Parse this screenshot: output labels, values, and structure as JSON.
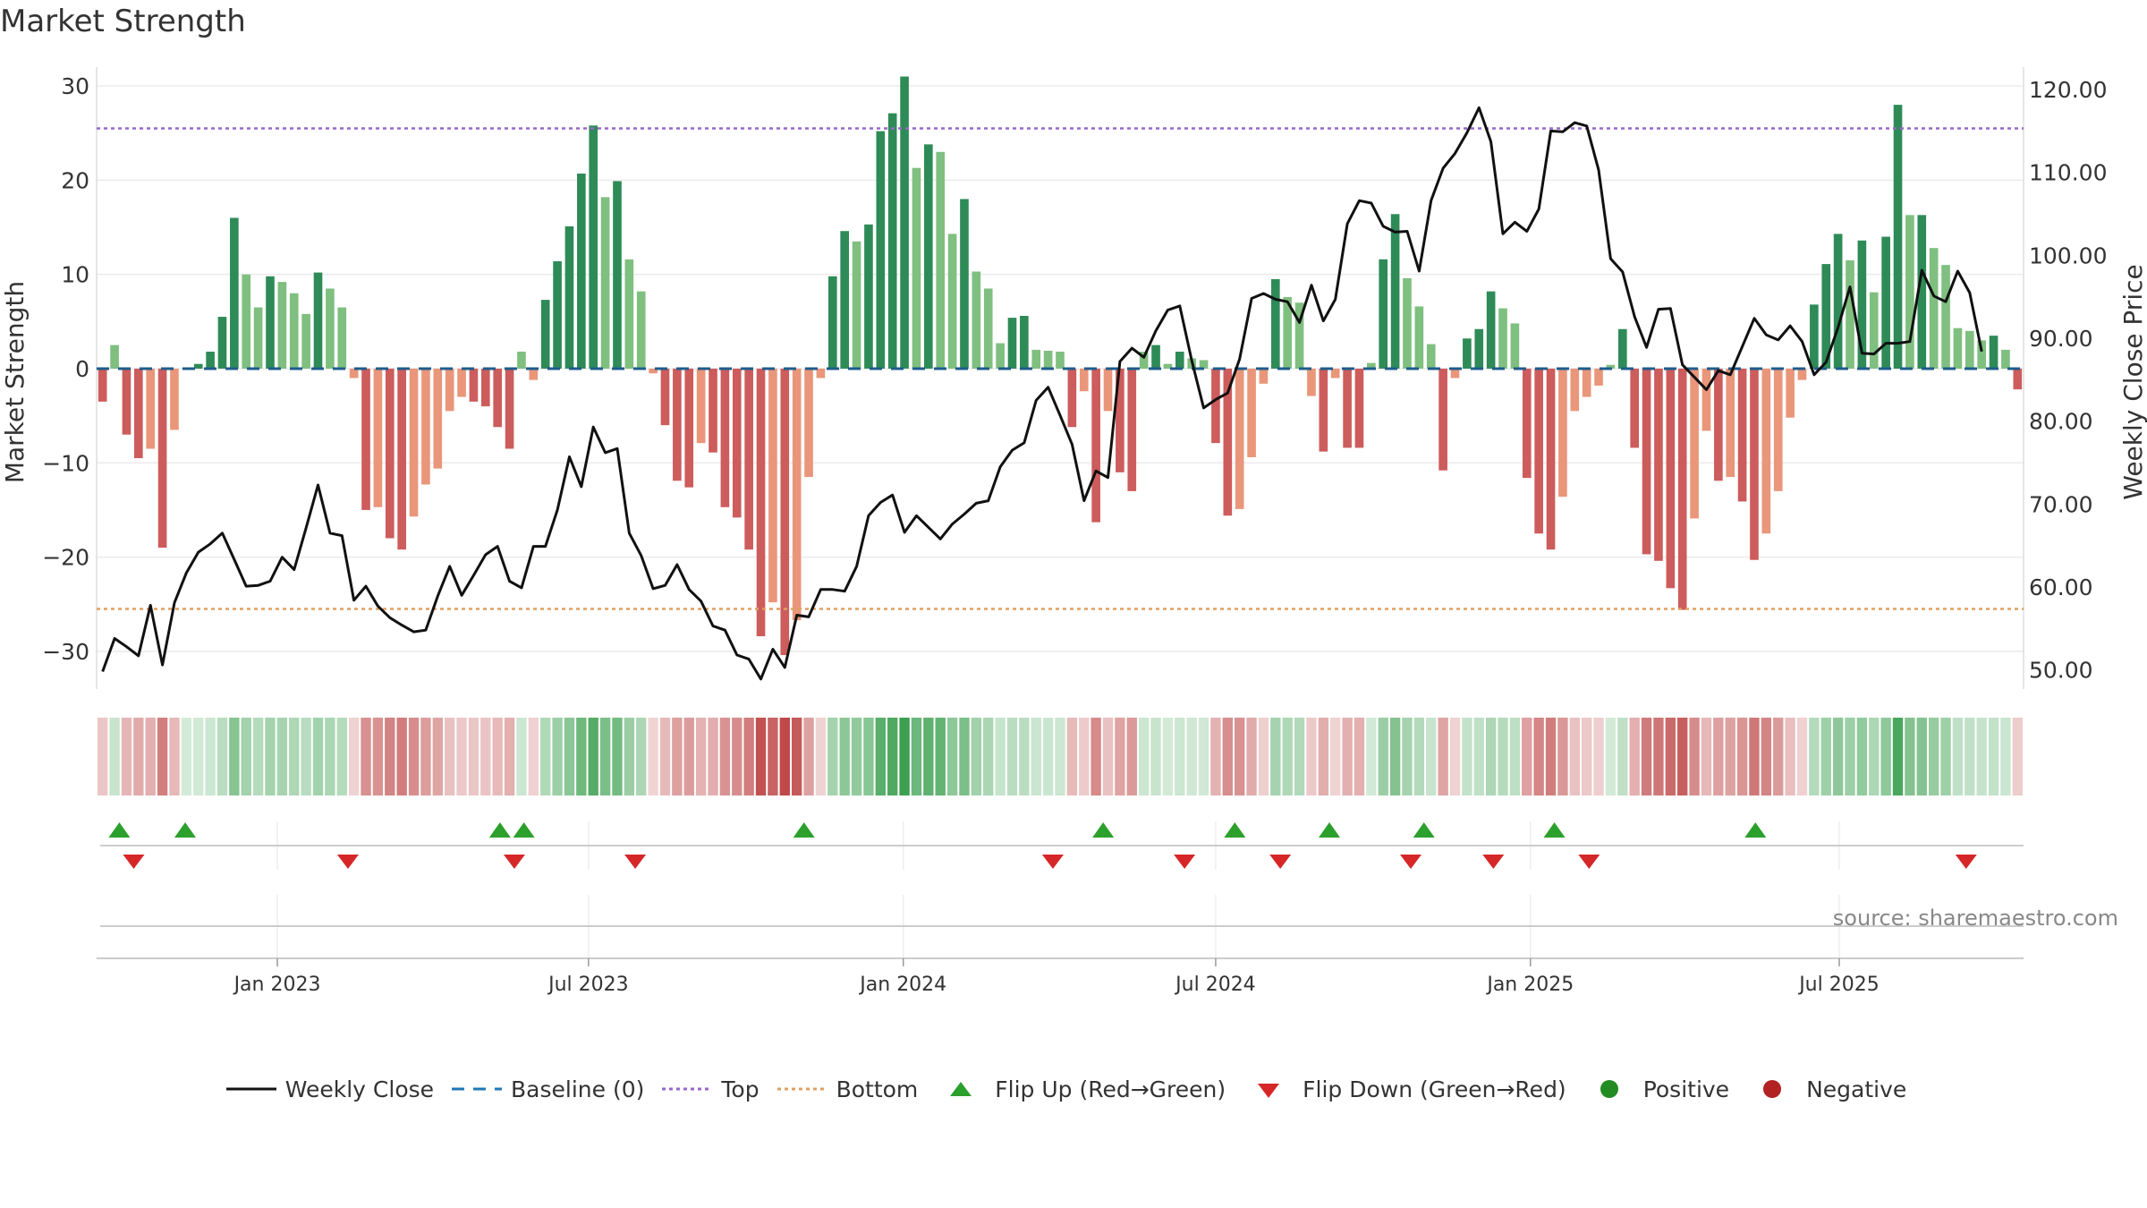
{
  "title": "Market Strength",
  "source": "source: sharemaestro.com",
  "colors": {
    "pos_dark": "#2e8b57",
    "pos_light": "#7fbf7f",
    "neg_dark": "#cd5c5c",
    "neg_light": "#e9967a",
    "line": "#111111",
    "top_line": "#9966cc",
    "bottom_line": "#e0a060",
    "baseline": "#1f5c8c",
    "flip_up": "#2ca02c",
    "flip_down": "#d62728"
  },
  "chart_data": {
    "type": "bar",
    "title": "Market Strength",
    "ylabel": "Market Strength",
    "y2label": "Weekly Close Price",
    "ylim": [
      -34,
      32
    ],
    "y2lim": [
      47.7,
      122.7
    ],
    "yticks": [
      30,
      20,
      10,
      0,
      -10,
      -20,
      -30
    ],
    "ytick_labels": [
      "30",
      "20",
      "10",
      "0",
      "−10",
      "−20",
      "−30"
    ],
    "y2ticks": [
      120,
      110,
      100,
      90,
      80,
      70,
      60,
      50
    ],
    "y2tick_labels": [
      "120.00",
      "110.00",
      "100.00",
      "90.00",
      "80.00",
      "70.00",
      "60.00",
      "50.00"
    ],
    "top_level": 25.5,
    "bottom_level": -25.5,
    "x_start": "2022-09-16",
    "x_ticks": [
      {
        "label": "Jan 2023",
        "week": 14.6
      },
      {
        "label": "Jul 2023",
        "week": 40.6
      },
      {
        "label": "Jan 2024",
        "week": 66.9
      },
      {
        "label": "Jul 2024",
        "week": 93.0
      },
      {
        "label": "Jan 2025",
        "week": 119.3
      },
      {
        "label": "Jul 2025",
        "week": 145.1
      }
    ],
    "strength": [
      -3.5,
      2.5,
      -7,
      -9.5,
      -8.5,
      -19,
      -6.5,
      0.1,
      0.5,
      1.8,
      5.5,
      16,
      10,
      6.5,
      9.8,
      9.2,
      8,
      5.8,
      10.2,
      8.5,
      6.5,
      -1,
      -15,
      -14.7,
      -18,
      -19.2,
      -15.7,
      -12.3,
      -10.6,
      -4.5,
      -3,
      -3.5,
      -4,
      -6.2,
      -8.5,
      1.8,
      -1.2,
      7.3,
      11.4,
      15.1,
      20.7,
      25.8,
      18.2,
      19.9,
      11.6,
      8.2,
      -0.5,
      -6,
      -11.9,
      -12.6,
      -7.9,
      -8.9,
      -14.7,
      -15.8,
      -19.2,
      -28.4,
      -24.8,
      -30.4,
      -26.7,
      -11.5,
      -1,
      9.8,
      14.6,
      13.5,
      15.3,
      25.2,
      27.1,
      31,
      21.3,
      23.8,
      23,
      14.3,
      18,
      10.3,
      8.5,
      2.7,
      5.4,
      5.6,
      2,
      1.9,
      1.8,
      -6.2,
      -2.4,
      -16.3,
      -4.5,
      -11,
      -13,
      1.8,
      2.5,
      0.5,
      1.8,
      1.1,
      0.9,
      -7.9,
      -15.6,
      -14.9,
      -9.4,
      -1.6,
      9.5,
      7.6,
      7,
      -2.9,
      -8.8,
      -1,
      -8.4,
      -8.4,
      0.6,
      11.6,
      16.4,
      9.6,
      6.6,
      2.6,
      -10.8,
      -1,
      3.2,
      4.2,
      8.2,
      6.4,
      4.8,
      -11.6,
      -17.5,
      -19.2,
      -13.6,
      -4.5,
      -3,
      -1.8,
      0.4,
      4.2,
      -8.4,
      -19.7,
      -20.4,
      -23.3,
      -25.6,
      -15.9,
      -6.6,
      -11.9,
      -11.5,
      -14.1,
      -20.3,
      -17.5,
      -13,
      -5.2,
      -1.2,
      6.8,
      11.1,
      14.3,
      11.5,
      13.6,
      8.1,
      14,
      28,
      16.3,
      16.3,
      12.8,
      11,
      4.3,
      4,
      3,
      3.5,
      2,
      -2.2
    ],
    "close": [
      49.8,
      53.8,
      52.8,
      51.7,
      57.8,
      50.6,
      58.1,
      61.7,
      64.2,
      65.2,
      66.5,
      63.3,
      60.1,
      60.2,
      60.7,
      63.6,
      62.1,
      67.1,
      72.3,
      66.5,
      66.2,
      58.4,
      60.1,
      57.7,
      56.3,
      55.4,
      54.6,
      54.8,
      58.9,
      62.5,
      59.0,
      61.4,
      63.9,
      64.9,
      60.7,
      59.9,
      64.9,
      64.9,
      69.3,
      75.7,
      72.1,
      79.3,
      76.2,
      76.7,
      66.5,
      63.8,
      59.8,
      60.2,
      62.7,
      59.7,
      58.3,
      55.3,
      54.8,
      51.8,
      51.3,
      48.9,
      52.5,
      50.3,
      56.6,
      56.4,
      59.7,
      59.7,
      59.5,
      62.5,
      68.6,
      70.2,
      71.1,
      66.6,
      68.6,
      67.2,
      65.8,
      67.6,
      68.8,
      70.1,
      70.4,
      74.5,
      76.5,
      77.4,
      82.5,
      84.1,
      80.7,
      77.2,
      70.4,
      74.0,
      73.2,
      87.2,
      88.8,
      87.7,
      90.9,
      93.4,
      93.9,
      87.3,
      81.6,
      82.6,
      83.4,
      87.5,
      94.8,
      95.4,
      94.7,
      94.4,
      91.9,
      96.4,
      92.1,
      94.7,
      103.8,
      106.6,
      106.3,
      103.5,
      102.8,
      102.9,
      98.1,
      106.6,
      110.5,
      112.3,
      114.8,
      117.8,
      113.7,
      102.6,
      104.0,
      102.9,
      105.6,
      115.0,
      114.9,
      116.0,
      115.6,
      110.3,
      99.6,
      98.0,
      92.6,
      88.9,
      93.5,
      93.6,
      86.8,
      85.3,
      83.8,
      86.1,
      85.6,
      89.0,
      92.4,
      90.4,
      89.8,
      91.5,
      89.6,
      85.6,
      87.1,
      91.3,
      96.2,
      88.2,
      88.1,
      89.4,
      89.4,
      89.6,
      98.2,
      95.1,
      94.4,
      98.1,
      95.5,
      88.4
    ],
    "flip_up_weeks": [
      1.4,
      6.9,
      33.2,
      35.2,
      58.6,
      83.6,
      94.6,
      102.5,
      110.4,
      121.3,
      138.1
    ],
    "flip_down_weeks": [
      2.6,
      20.5,
      34.4,
      44.5,
      79.4,
      90.4,
      98.4,
      109.3,
      116.2,
      124.2,
      155.7
    ],
    "series": [
      {
        "name": "Weekly Close",
        "style": "line"
      },
      {
        "name": "Baseline (0)",
        "style": "dashed"
      },
      {
        "name": "Top",
        "style": "dotted"
      },
      {
        "name": "Bottom",
        "style": "dotted"
      },
      {
        "name": "Flip Up (Red→Green)",
        "style": "triangle-up"
      },
      {
        "name": "Flip Down (Green→Red)",
        "style": "triangle-down"
      },
      {
        "name": "Positive",
        "style": "dot"
      },
      {
        "name": "Negative",
        "style": "dot"
      }
    ]
  }
}
